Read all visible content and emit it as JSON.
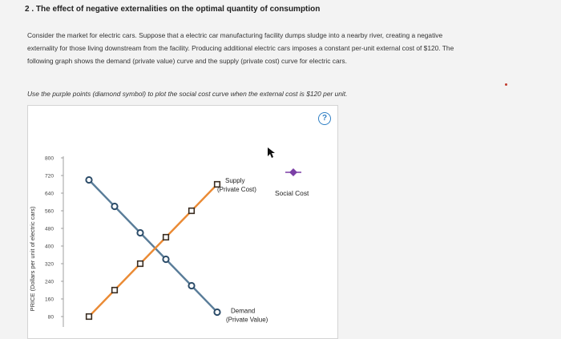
{
  "question": {
    "title": "2 . The effect of negative externalities on the optimal quantity of consumption",
    "paragraph_lines": [
      "Consider the market for electric cars. Suppose that a electric car manufacturing facility dumps sludge into a nearby river, creating a negative",
      "externality for those living downstream from the facility. Producing additional electric cars imposes a constant per-unit external cost of $120. The",
      "following graph shows the demand (private value) curve and the supply (private cost) curve for electric cars."
    ],
    "instruction": "Use the purple points (diamond symbol) to plot the social cost curve when the external cost is $120 per unit."
  },
  "help": {
    "label": "?"
  },
  "legend": {
    "label": "Social Cost",
    "icon": "purple-diamond-icon"
  },
  "colors": {
    "demand": "#5a7d99",
    "supply": "#ea8a34",
    "social_cost": "#7b3fa6",
    "help": "#2f7fc4"
  },
  "chart_data": {
    "type": "line",
    "ylabel": "PRICE (Dollars per unit of electric cars)",
    "yticks": [
      "800",
      "720",
      "640",
      "560",
      "480",
      "400",
      "320",
      "240",
      "160",
      "80"
    ],
    "ytick_values": [
      800,
      720,
      640,
      560,
      480,
      400,
      320,
      240,
      160,
      80
    ],
    "ylim": [
      80,
      800
    ],
    "x": [
      1,
      2,
      3,
      4,
      5,
      6
    ],
    "series": [
      {
        "name": "Demand",
        "label_lines": [
          "Demand",
          "(Private Value)"
        ],
        "marker": "circle",
        "values": [
          700,
          580,
          460,
          340,
          220,
          100
        ]
      },
      {
        "name": "Supply",
        "label_lines": [
          "Supply",
          "(Private Cost)"
        ],
        "marker": "square",
        "values": [
          80,
          200,
          320,
          440,
          560,
          680
        ]
      }
    ]
  }
}
